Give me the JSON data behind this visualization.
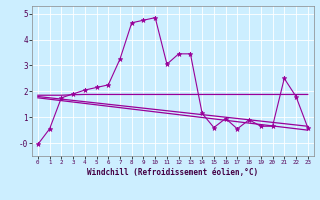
{
  "xlabel": "Windchill (Refroidissement éolien,°C)",
  "background_color": "#cceeff",
  "line_color": "#990099",
  "xlim": [
    -0.5,
    23.5
  ],
  "ylim": [
    -0.5,
    5.3
  ],
  "yticks": [
    0,
    1,
    2,
    3,
    4,
    5
  ],
  "ytick_labels": [
    "-0",
    "1",
    "2",
    "3",
    "4",
    "5"
  ],
  "xticks": [
    0,
    1,
    2,
    3,
    4,
    5,
    6,
    7,
    8,
    9,
    10,
    11,
    12,
    13,
    14,
    15,
    16,
    17,
    18,
    19,
    20,
    21,
    22,
    23
  ],
  "series1_x": [
    0,
    1,
    2,
    3,
    4,
    5,
    6,
    7,
    8,
    9,
    10,
    11,
    12,
    13,
    14,
    15,
    16,
    17,
    18,
    19,
    20,
    21,
    22,
    23
  ],
  "series1_y": [
    -0.05,
    0.55,
    1.75,
    1.9,
    2.05,
    2.15,
    2.25,
    3.25,
    4.65,
    4.75,
    4.85,
    3.05,
    3.45,
    3.45,
    1.15,
    0.6,
    0.95,
    0.55,
    0.9,
    0.65,
    0.65,
    2.5,
    1.8,
    0.6
  ],
  "series2_x": [
    0,
    1,
    2,
    3,
    4,
    5,
    6,
    7,
    8,
    9,
    10,
    11,
    12,
    13,
    14,
    15,
    16,
    17,
    18,
    19,
    20,
    21,
    22,
    23
  ],
  "series2_y": [
    1.85,
    1.85,
    1.85,
    1.87,
    1.88,
    1.88,
    1.88,
    1.88,
    1.88,
    1.88,
    1.88,
    1.88,
    1.88,
    1.88,
    1.88,
    1.88,
    1.88,
    1.88,
    1.88,
    1.88,
    1.88,
    1.88,
    1.88,
    1.88
  ],
  "series3_x": [
    0,
    23
  ],
  "series3_y": [
    1.8,
    0.65
  ],
  "series4_x": [
    0,
    23
  ],
  "series4_y": [
    1.75,
    0.5
  ]
}
